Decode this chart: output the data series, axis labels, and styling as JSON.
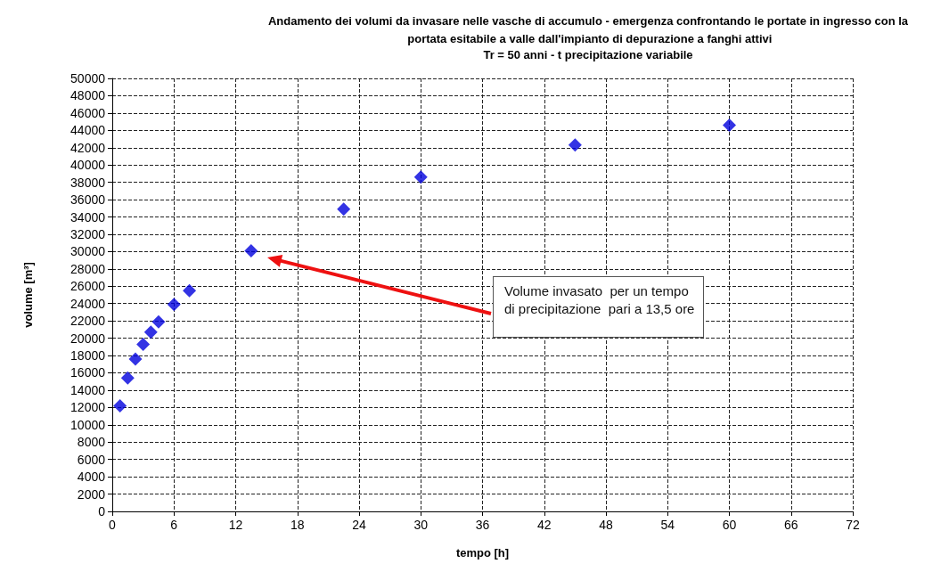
{
  "chart_data": {
    "type": "scatter",
    "title": "Andamento dei volumi da invasare nelle vasche di accumulo - emergenza confrontando le portate in ingresso con la portata esitabile a valle dall'impianto di depurazione a fanghi attivi",
    "subtitle": "Tr = 50 anni - t precipitazione variabile",
    "xlabel": "tempo [h]",
    "ylabel": "volume [m³]",
    "x": [
      0.75,
      1.5,
      2.25,
      3,
      3.75,
      4.5,
      6,
      7.5,
      13.5,
      22.5,
      30,
      45,
      60
    ],
    "series": [
      {
        "color": "#0000dd",
        "values": [
          12200,
          15400,
          17600,
          19300,
          20700,
          21900,
          23900,
          25500,
          30100,
          34900,
          38600,
          42300,
          44600
        ]
      }
    ],
    "xlim": [
      0,
      72
    ],
    "xticks": [
      0,
      6,
      12,
      18,
      24,
      30,
      36,
      42,
      48,
      54,
      60,
      66,
      72
    ],
    "ylim": [
      0,
      50000
    ],
    "yticks": [
      0,
      2000,
      4000,
      6000,
      8000,
      10000,
      12000,
      14000,
      16000,
      18000,
      20000,
      22000,
      24000,
      26000,
      28000,
      30000,
      32000,
      34000,
      36000,
      38000,
      40000,
      42000,
      44000,
      46000,
      48000,
      50000
    ],
    "grid": true,
    "marker": "diamond",
    "annotations": [
      "Volume invasato  per un tempo\ndi precipitazione  pari a 13,5 ore"
    ]
  }
}
